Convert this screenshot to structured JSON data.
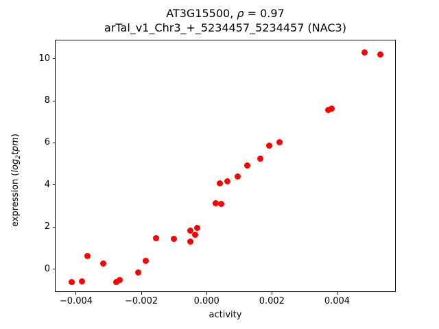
{
  "figure": {
    "title_line1": {
      "prefix": "AT3G15500, ",
      "rho": "ρ",
      "suffix": " = 0.97"
    },
    "title_line2": "arTal_v1_Chr3_+_5234457_5234457 (NAC3)",
    "xlabel": "activity",
    "ylabel": {
      "prefix": "expression (",
      "log": "log",
      "subscript": "2",
      "tail": "tpm",
      "suffix": ")"
    }
  },
  "chart_data": {
    "type": "scatter",
    "title": "AT3G15500, ρ = 0.97",
    "subtitle": "arTal_v1_Chr3_+_5234457_5234457 (NAC3)",
    "xlabel": "activity",
    "ylabel": "expression (log2 tpm)",
    "correlation_rho": 0.97,
    "marker_color": "#ff0000",
    "grid": false,
    "legend": false,
    "xlim": [
      -0.00463,
      0.00582
    ],
    "ylim": [
      -1.115,
      10.865
    ],
    "xticks": {
      "values": [
        -0.004,
        -0.002,
        0,
        0.002,
        0.004
      ],
      "labels": [
        "−0.004",
        "−0.002",
        "0.000",
        "0.002",
        "0.004"
      ]
    },
    "yticks": {
      "values": [
        0,
        2,
        4,
        6,
        8,
        10
      ],
      "labels": [
        "0",
        "2",
        "4",
        "6",
        "8",
        "10"
      ]
    },
    "points": [
      [
        -0.00414,
        -0.62
      ],
      [
        -0.00382,
        -0.58
      ],
      [
        -0.00365,
        0.62
      ],
      [
        -0.00317,
        0.26
      ],
      [
        -0.00277,
        -0.62
      ],
      [
        -0.00266,
        -0.52
      ],
      [
        -0.0021,
        -0.14
      ],
      [
        -0.00187,
        0.41
      ],
      [
        -0.00154,
        1.48
      ],
      [
        -0.001,
        1.45
      ],
      [
        -0.00049,
        1.3
      ],
      [
        -0.00049,
        1.84
      ],
      [
        -0.00035,
        1.64
      ],
      [
        -0.00028,
        1.97
      ],
      [
        0.00029,
        3.14
      ],
      [
        0.00044,
        3.1
      ],
      [
        0.0004,
        4.09
      ],
      [
        0.00063,
        4.16
      ],
      [
        0.00096,
        4.4
      ],
      [
        0.00124,
        4.92
      ],
      [
        0.00165,
        5.25
      ],
      [
        0.00191,
        5.88
      ],
      [
        0.00223,
        6.03
      ],
      [
        0.00373,
        7.56
      ],
      [
        0.00384,
        7.62
      ],
      [
        0.00485,
        10.3
      ],
      [
        0.00533,
        10.21
      ]
    ]
  }
}
